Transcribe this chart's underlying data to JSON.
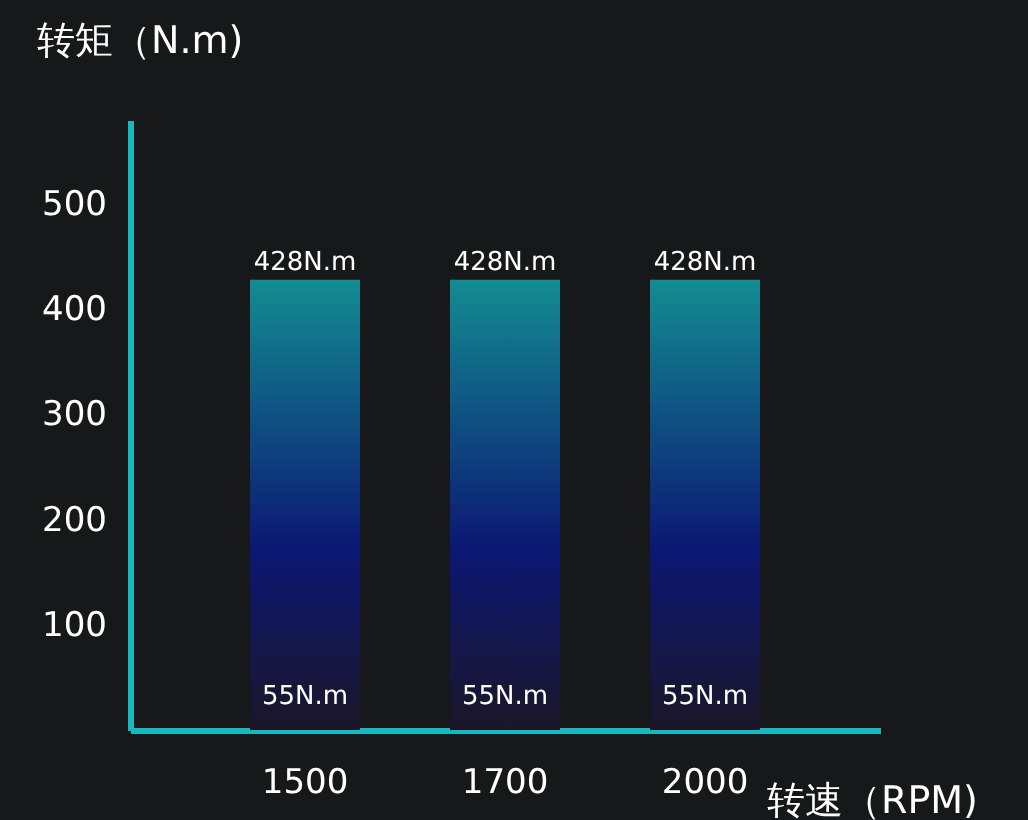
{
  "chart_data": {
    "type": "bar",
    "xlabel": "转速（RPM)",
    "ylabel": "转矩（N.m)",
    "categories": [
      "1500",
      "1700",
      "2000"
    ],
    "series": [
      {
        "color": "#138c92",
        "values": [
          428,
          428,
          428
        ],
        "value_labels": [
          "428N.m",
          "428N.m",
          "428N.m"
        ]
      }
    ],
    "annotations": [
      "55N.m",
      "55N.m",
      "55N.m"
    ],
    "ylim": [
      0,
      580
    ],
    "yticks": [
      100,
      200,
      300,
      400,
      500
    ],
    "grid": false,
    "legend": false
  }
}
